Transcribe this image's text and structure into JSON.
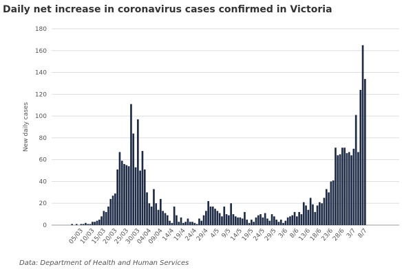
{
  "chart_data": {
    "type": "bar",
    "title": "Daily net increase in coronavirus cases confirmed in Victoria",
    "y_label": "New daily cases",
    "source": "Data: Department of Health and Human Services",
    "color": "#1d2a45",
    "grid": true,
    "ylim": [
      0,
      180
    ],
    "yticks": [
      0,
      20,
      40,
      60,
      80,
      100,
      120,
      140,
      160,
      180
    ],
    "categories": [
      null,
      null,
      null,
      null,
      "05/03",
      null,
      null,
      null,
      null,
      "10/03",
      null,
      null,
      null,
      null,
      "15/03",
      null,
      null,
      null,
      null,
      "20/03",
      null,
      null,
      null,
      null,
      "25/03",
      null,
      null,
      null,
      null,
      "30/03",
      null,
      null,
      null,
      null,
      "04/04",
      null,
      null,
      null,
      null,
      "09/04",
      null,
      null,
      null,
      null,
      "14/4",
      null,
      null,
      null,
      null,
      "19/4",
      null,
      null,
      null,
      null,
      "24/4",
      null,
      null,
      null,
      null,
      "29/4",
      null,
      null,
      null,
      null,
      "4/5",
      null,
      null,
      null,
      null,
      "9/5",
      null,
      null,
      null,
      null,
      "14/5",
      null,
      null,
      null,
      null,
      "19/5",
      null,
      null,
      null,
      null,
      "24/5",
      null,
      null,
      null,
      null,
      "29/5",
      null,
      null,
      null,
      null,
      "3/6",
      null,
      null,
      null,
      null,
      "8/6",
      null,
      null,
      null,
      null,
      "13/6",
      null,
      null,
      null,
      null,
      "18/6",
      null,
      null,
      null,
      null,
      "23/6",
      null,
      null,
      null,
      null,
      "28/6",
      null,
      null,
      null,
      null,
      "3/7",
      null,
      null,
      null,
      null,
      "8/7"
    ],
    "values": [
      1,
      0,
      1,
      0,
      1,
      1,
      2,
      1,
      1,
      3,
      3,
      4,
      5,
      8,
      13,
      12,
      17,
      24,
      27,
      29,
      51,
      67,
      59,
      56,
      55,
      54,
      111,
      84,
      53,
      97,
      50,
      68,
      51,
      30,
      20,
      17,
      33,
      20,
      14,
      24,
      13,
      11,
      9,
      4,
      2,
      17,
      9,
      3,
      7,
      2,
      3,
      6,
      3,
      3,
      2,
      1,
      6,
      4,
      9,
      13,
      22,
      17,
      17,
      15,
      13,
      11,
      8,
      17,
      10,
      9,
      20,
      10,
      8,
      7,
      7,
      6,
      12,
      5,
      2,
      5,
      3,
      7,
      9,
      10,
      7,
      11,
      6,
      4,
      10,
      8,
      5,
      3,
      5,
      2,
      4,
      7,
      8,
      9,
      12,
      8,
      12,
      10,
      21,
      18,
      14,
      25,
      19,
      12,
      18,
      21,
      20,
      25,
      33,
      30,
      40,
      41,
      71,
      64,
      65,
      71,
      71,
      66,
      67,
      64,
      70,
      101,
      67,
      124,
      165,
      134
    ]
  }
}
